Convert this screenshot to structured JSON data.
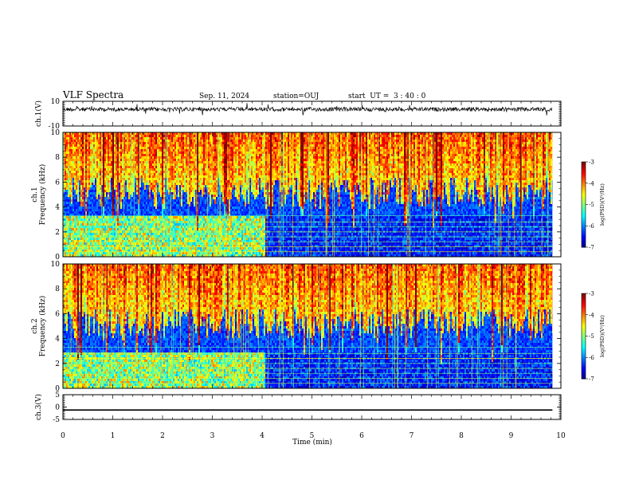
{
  "header": {
    "title": "VLF Spectra",
    "date": "Sep. 11, 2024",
    "station": "station=OUJ",
    "start_ut": "start  UT =  3 : 40 : 0"
  },
  "chart_data": [
    {
      "type": "line",
      "panel": "ch1-waveform",
      "ylabel": "ch.1(V)",
      "ylim": [
        -10,
        10
      ],
      "yticks": [
        {
          "v": 10,
          "label": "10"
        },
        {
          "v": -10,
          "label": "-10"
        }
      ],
      "xlim": [
        0,
        10
      ],
      "baseline": 3.5,
      "color": "#000000"
    },
    {
      "type": "heatmap",
      "panel": "ch1-spectrogram",
      "ylabel": "ch.1\nFrequency (kHz)",
      "ylim": [
        0,
        10
      ],
      "yticks": [
        {
          "v": 0,
          "label": "0"
        },
        {
          "v": 2,
          "label": "2"
        },
        {
          "v": 4,
          "label": "4"
        },
        {
          "v": 6,
          "label": "6"
        },
        {
          "v": 8,
          "label": "8"
        },
        {
          "v": 10,
          "label": "10"
        }
      ],
      "xlim": [
        0,
        10
      ],
      "data_end_min": 9.83,
      "regime_change_min": 4.05,
      "colorbar": {
        "label": "log(PSD)(V²/Hz)",
        "range": [
          -7,
          -3
        ],
        "ticks": [
          {
            "v": -3,
            "label": "-3"
          },
          {
            "v": -4,
            "label": "-4"
          },
          {
            "v": -5,
            "label": "-5"
          },
          {
            "v": -6,
            "label": "-6"
          },
          {
            "v": -7,
            "label": "-7"
          }
        ]
      }
    },
    {
      "type": "heatmap",
      "panel": "ch2-spectrogram",
      "ylabel": "ch.2\nFrequency (kHz)",
      "ylim": [
        0,
        10
      ],
      "yticks": [
        {
          "v": 0,
          "label": "0"
        },
        {
          "v": 2,
          "label": "2"
        },
        {
          "v": 4,
          "label": "4"
        },
        {
          "v": 6,
          "label": "6"
        },
        {
          "v": 8,
          "label": "8"
        },
        {
          "v": 10,
          "label": "10"
        }
      ],
      "xlim": [
        0,
        10
      ],
      "data_end_min": 9.83,
      "regime_change_min": 4.05,
      "colorbar": {
        "label": "log(PSD)(V²/Hz)",
        "range": [
          -7,
          -3
        ],
        "ticks": [
          {
            "v": -3,
            "label": "-3"
          },
          {
            "v": -4,
            "label": "-4"
          },
          {
            "v": -5,
            "label": "-5"
          },
          {
            "v": -6,
            "label": "-6"
          },
          {
            "v": -7,
            "label": "-7"
          }
        ]
      }
    },
    {
      "type": "line",
      "panel": "ch3-waveform",
      "ylabel": "ch.3(V)",
      "ylim": [
        -5,
        5
      ],
      "yticks": [
        {
          "v": 5,
          "label": "5"
        },
        {
          "v": 0,
          "label": "0"
        },
        {
          "v": -5,
          "label": "-5"
        }
      ],
      "xlim": [
        0,
        10
      ],
      "x": [
        0,
        9.83
      ],
      "y": [
        -1.2,
        -1.2
      ],
      "color": "#000000"
    }
  ],
  "xaxis": {
    "label": "Time (min)",
    "ticks": [
      {
        "v": 0,
        "label": "0"
      },
      {
        "v": 1,
        "label": "1"
      },
      {
        "v": 2,
        "label": "2"
      },
      {
        "v": 3,
        "label": "3"
      },
      {
        "v": 4,
        "label": "4"
      },
      {
        "v": 5,
        "label": "5"
      },
      {
        "v": 6,
        "label": "6"
      },
      {
        "v": 7,
        "label": "7"
      },
      {
        "v": 8,
        "label": "8"
      },
      {
        "v": 9,
        "label": "9"
      },
      {
        "v": 10,
        "label": "10"
      }
    ]
  }
}
